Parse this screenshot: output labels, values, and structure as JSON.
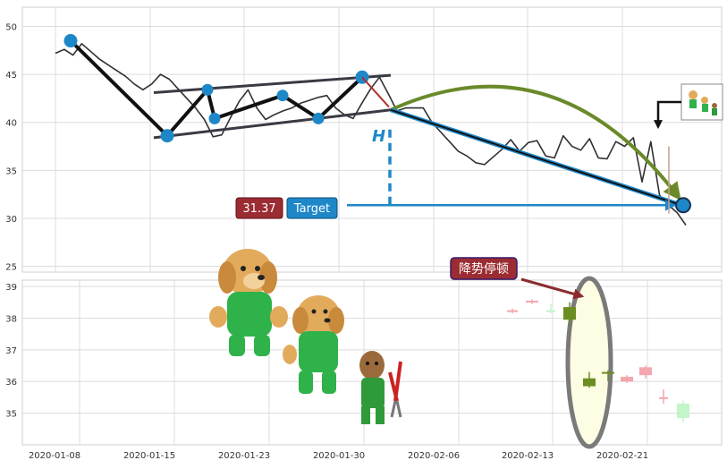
{
  "chart_data": [
    {
      "type": "line",
      "panel": "top",
      "ylim": [
        24.5,
        52
      ],
      "y_ticks": [
        "25",
        "30",
        "35",
        "40",
        "45",
        "50"
      ],
      "colors": {
        "price": "#303036",
        "marker": "#1e87c8",
        "channel": "#3a3a44",
        "arc": "#6a8a2a",
        "target": "#1e87c8"
      },
      "series": [
        {
          "values": [
            47.2,
            47.6,
            47.0,
            48.2,
            47.4,
            46.6,
            46.0,
            45.4,
            44.8,
            44.0,
            43.4,
            44.0,
            45.0,
            44.5,
            43.5,
            42.5,
            41.5,
            40.3,
            38.5,
            38.7,
            40.5,
            42.2,
            43.4,
            41.5,
            40.3,
            40.8,
            41.2,
            41.5,
            42.0,
            42.3,
            42.6,
            42.8,
            41.5,
            40.8,
            40.4,
            42.0,
            43.5,
            44.7,
            43.0,
            41.2,
            41.5,
            41.5,
            41.5,
            40.0,
            39.0,
            38.0,
            37.0,
            36.5,
            35.8,
            35.6,
            36.4,
            37.2,
            38.2,
            37.0,
            37.9,
            38.1,
            36.5,
            36.3,
            38.6,
            37.5,
            37.1,
            38.3,
            36.3,
            36.2,
            38.0,
            37.5,
            38.4,
            33.8,
            38.0,
            32.4,
            31.4,
            30.6,
            29.3
          ]
        }
      ],
      "pivots": [
        {
          "value": 48.5,
          "label": ""
        },
        {
          "value": 38.6,
          "label": ""
        },
        {
          "value": 43.4,
          "label": ""
        },
        {
          "value": 40.4,
          "label": ""
        },
        {
          "value": 42.8,
          "label": ""
        },
        {
          "value": 40.4,
          "label": ""
        },
        {
          "value": 44.7,
          "label": ""
        }
      ],
      "channel": {
        "upper": [
          43.1,
          44.9
        ],
        "lower": [
          38.4,
          41.3
        ]
      },
      "measure_label": "H",
      "target": {
        "value": 31.37,
        "value_label": "31.37",
        "label": "Target"
      }
    },
    {
      "type": "candlestick",
      "panel": "bottom",
      "ylim": [
        34,
        39.2
      ],
      "y_ticks": [
        "35",
        "36",
        "37",
        "38",
        "39"
      ],
      "x_ticks": [
        "2020-01-08",
        "2020-01-15",
        "2020-01-23",
        "2020-01-30",
        "2020-02-06",
        "2020-02-13",
        "2020-02-21"
      ],
      "colors": {
        "up": "#6b8e23",
        "down": "#f4a6ae",
        "light": "#c2f5c8",
        "highlight": "#fdfde4",
        "ring": "#7a7a7a"
      },
      "candles": [
        {
          "open": 38.2,
          "close": 38.25,
          "high": 38.3,
          "low": 38.15,
          "color": "down"
        },
        {
          "open": 38.55,
          "close": 38.5,
          "high": 38.6,
          "low": 38.45,
          "color": "down"
        },
        {
          "open": 38.25,
          "close": 38.2,
          "high": 38.45,
          "low": 38.15,
          "color": "light"
        },
        {
          "open": 37.95,
          "close": 38.35,
          "high": 38.5,
          "low": 37.8,
          "color": "up"
        },
        {
          "open": 35.85,
          "close": 36.1,
          "high": 36.3,
          "low": 35.8,
          "color": "up"
        },
        {
          "open": 36.25,
          "close": 36.3,
          "high": 36.35,
          "low": 36.0,
          "color": "up"
        },
        {
          "open": 36.15,
          "close": 36.0,
          "high": 36.2,
          "low": 35.95,
          "color": "down"
        },
        {
          "open": 36.45,
          "close": 36.2,
          "high": 36.5,
          "low": 36.1,
          "color": "down"
        },
        {
          "open": 35.5,
          "close": 35.5,
          "high": 35.75,
          "low": 35.3,
          "color": "down"
        },
        {
          "open": 35.3,
          "close": 34.85,
          "high": 35.4,
          "low": 34.7,
          "color": "light"
        }
      ],
      "annotation": "降势停顿"
    }
  ]
}
